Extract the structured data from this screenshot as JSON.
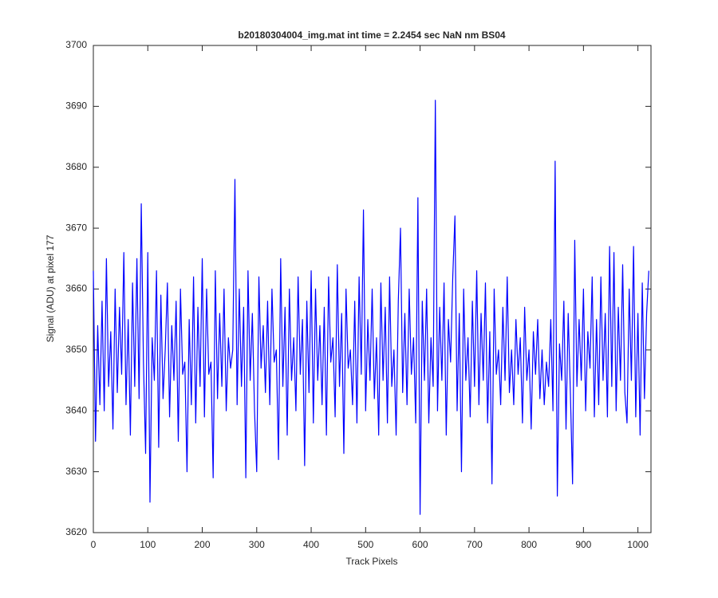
{
  "chart_data": {
    "type": "line",
    "title": "b20180304004_img.mat int time = 2.2454 sec  NaN nm BS04",
    "x_label": "Track Pixels",
    "y_label": "Signal (ADU) at pixel 177",
    "xlim": [
      0,
      1024
    ],
    "xticks": [
      0,
      100,
      200,
      300,
      400,
      500,
      600,
      700,
      800,
      900,
      1000
    ],
    "ylim": [
      3620,
      3700
    ],
    "yticks": [
      3620,
      3630,
      3640,
      3650,
      3660,
      3670,
      3680,
      3690,
      3700
    ],
    "grid": false,
    "x": [
      0,
      4,
      8,
      12,
      16,
      20,
      24,
      28,
      32,
      36,
      40,
      44,
      48,
      52,
      56,
      60,
      64,
      68,
      72,
      76,
      80,
      84,
      88,
      92,
      96,
      100,
      104,
      108,
      112,
      116,
      120,
      124,
      128,
      132,
      136,
      140,
      144,
      148,
      152,
      156,
      160,
      164,
      168,
      172,
      176,
      180,
      184,
      188,
      192,
      196,
      200,
      204,
      208,
      212,
      216,
      220,
      224,
      228,
      232,
      236,
      240,
      244,
      248,
      252,
      256,
      260,
      264,
      268,
      272,
      276,
      280,
      284,
      288,
      292,
      296,
      300,
      304,
      308,
      312,
      316,
      320,
      324,
      328,
      332,
      336,
      340,
      344,
      348,
      352,
      356,
      360,
      364,
      368,
      372,
      376,
      380,
      384,
      388,
      392,
      396,
      400,
      404,
      408,
      412,
      416,
      420,
      424,
      428,
      432,
      436,
      440,
      444,
      448,
      452,
      456,
      460,
      464,
      468,
      472,
      476,
      480,
      484,
      488,
      492,
      496,
      500,
      504,
      508,
      512,
      516,
      520,
      524,
      528,
      532,
      536,
      540,
      544,
      548,
      552,
      556,
      560,
      564,
      568,
      572,
      576,
      580,
      584,
      588,
      592,
      596,
      600,
      604,
      608,
      612,
      616,
      620,
      624,
      628,
      632,
      636,
      640,
      644,
      648,
      652,
      656,
      660,
      664,
      668,
      672,
      676,
      680,
      684,
      688,
      692,
      696,
      700,
      704,
      708,
      712,
      716,
      720,
      724,
      728,
      732,
      736,
      740,
      744,
      748,
      752,
      756,
      760,
      764,
      768,
      772,
      776,
      780,
      784,
      788,
      792,
      796,
      800,
      804,
      808,
      812,
      816,
      820,
      824,
      828,
      832,
      836,
      840,
      844,
      848,
      852,
      856,
      860,
      864,
      868,
      872,
      876,
      880,
      884,
      888,
      892,
      896,
      900,
      904,
      908,
      912,
      916,
      920,
      924,
      928,
      932,
      936,
      940,
      944,
      948,
      952,
      956,
      960,
      964,
      968,
      972,
      976,
      980,
      984,
      988,
      992,
      996,
      1000,
      1004,
      1008,
      1012,
      1016,
      1020
    ],
    "series": [
      {
        "name": "signal",
        "color": "#0000ff",
        "values": [
          3663,
          3635,
          3654,
          3641,
          3658,
          3640,
          3665,
          3644,
          3653,
          3637,
          3660,
          3643,
          3657,
          3646,
          3666,
          3641,
          3655,
          3636,
          3661,
          3644,
          3665,
          3642,
          3674,
          3648,
          3633,
          3666,
          3625,
          3652,
          3645,
          3663,
          3634,
          3659,
          3642,
          3650,
          3661,
          3639,
          3654,
          3645,
          3658,
          3635,
          3660,
          3646,
          3648,
          3630,
          3655,
          3641,
          3662,
          3638,
          3657,
          3644,
          3665,
          3639,
          3660,
          3646,
          3648,
          3629,
          3663,
          3642,
          3656,
          3644,
          3660,
          3640,
          3652,
          3647,
          3650,
          3678,
          3641,
          3660,
          3644,
          3657,
          3629,
          3663,
          3645,
          3656,
          3640,
          3630,
          3662,
          3647,
          3654,
          3643,
          3658,
          3641,
          3660,
          3648,
          3650,
          3632,
          3665,
          3644,
          3657,
          3636,
          3660,
          3645,
          3652,
          3640,
          3662,
          3646,
          3655,
          3631,
          3658,
          3643,
          3663,
          3638,
          3660,
          3645,
          3654,
          3641,
          3657,
          3636,
          3662,
          3648,
          3652,
          3639,
          3664,
          3644,
          3656,
          3633,
          3660,
          3647,
          3650,
          3641,
          3658,
          3638,
          3662,
          3646,
          3673,
          3640,
          3655,
          3645,
          3660,
          3642,
          3652,
          3636,
          3661,
          3645,
          3657,
          3638,
          3662,
          3644,
          3650,
          3636,
          3658,
          3670,
          3643,
          3656,
          3641,
          3660,
          3646,
          3652,
          3638,
          3675,
          3623,
          3658,
          3645,
          3660,
          3638,
          3652,
          3644,
          3691,
          3640,
          3657,
          3645,
          3661,
          3636,
          3655,
          3648,
          3662,
          3672,
          3640,
          3656,
          3630,
          3660,
          3645,
          3652,
          3639,
          3658,
          3644,
          3663,
          3641,
          3656,
          3645,
          3661,
          3638,
          3653,
          3628,
          3660,
          3646,
          3650,
          3641,
          3657,
          3645,
          3662,
          3643,
          3650,
          3641,
          3655,
          3646,
          3652,
          3638,
          3657,
          3645,
          3650,
          3637,
          3653,
          3646,
          3655,
          3642,
          3650,
          3641,
          3648,
          3644,
          3655,
          3640,
          3681,
          3626,
          3651,
          3645,
          3658,
          3637,
          3656,
          3643,
          3628,
          3668,
          3644,
          3655,
          3645,
          3660,
          3640,
          3653,
          3647,
          3662,
          3639,
          3655,
          3641,
          3662,
          3645,
          3656,
          3639,
          3667,
          3644,
          3666,
          3640,
          3657,
          3645,
          3664,
          3643,
          3638,
          3660,
          3645,
          3667,
          3639,
          3656,
          3636,
          3661,
          3642,
          3656,
          3663
        ]
      }
    ]
  }
}
